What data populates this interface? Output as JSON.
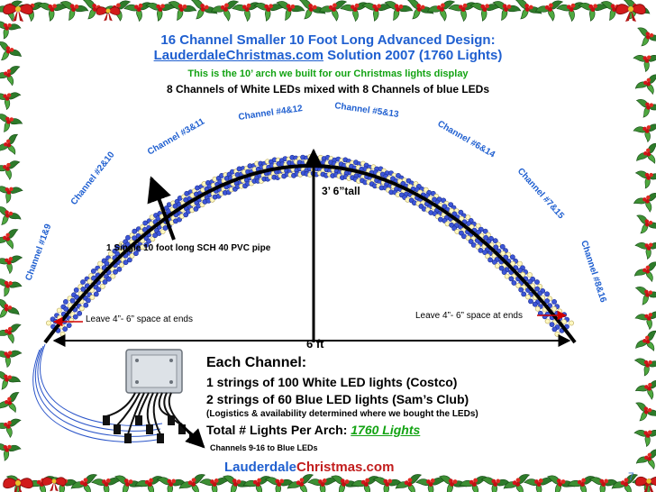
{
  "title": {
    "line1": "16 Channel Smaller 10 Foot Long Advanced Design:",
    "site": "LauderdaleChristmas.com",
    "line2_rest": " Solution 2007 (1760 Lights)",
    "line3": "This is the 10’ arch we built for our Christmas lights display",
    "line4": "8 Channels of White LEDs mixed with 8 Channels of blue LEDs"
  },
  "channels": [
    "Channel #1&9",
    "Channel #2&10",
    "Channel #3&11",
    "Channel #4&12",
    "Channel #5&13",
    "Channel #6&14",
    "Channel #7&15",
    "Channel #8&16"
  ],
  "annotations": {
    "pipe": "1 Single 10 foot long SCH 40 PVC pipe",
    "height": "3’ 6”tall",
    "width": "6 ft",
    "leave_space_left": "Leave 4”- 6” space at ends",
    "leave_space_right": "Leave 4”- 6” space at ends",
    "blue_channels": "Channels 9-16 to Blue LEDs"
  },
  "details": {
    "heading": "Each Channel:",
    "line1": "1 strings of 100 White LED lights (Costco)",
    "line2": "2 strings of 60 Blue LED lights (Sam’s Club)",
    "line3": "(Logistics & availability determined where we bought the LEDs)",
    "total_label": "Total # Lights Per Arch: ",
    "total_value": "1760 Lights"
  },
  "footer": {
    "part1": "Lauderdale",
    "part2": "Christmas.com"
  },
  "page_number": "7",
  "colors": {
    "title_blue": "#1f5fd0",
    "green": "#13a313",
    "footer_red": "#c21d1d",
    "led_blue": "#3d56d8",
    "led_white": "#fff8c0"
  }
}
